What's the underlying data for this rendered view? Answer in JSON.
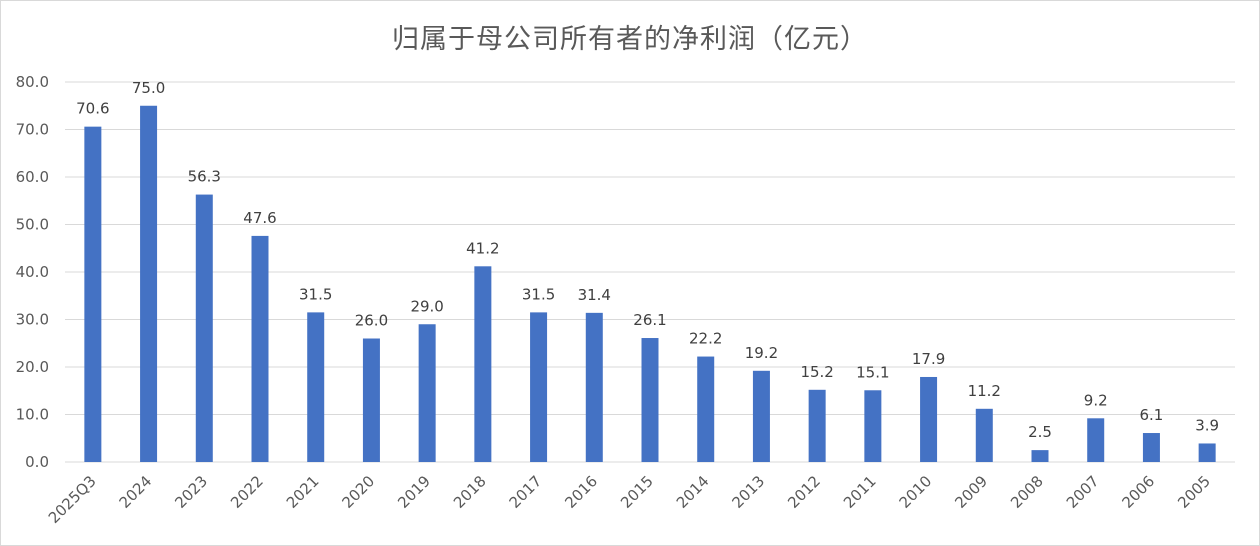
{
  "chart_data": {
    "type": "bar",
    "title": "归属于母公司所有者的净利润（亿元）",
    "categories": [
      "2025Q3",
      "2024",
      "2023",
      "2022",
      "2021",
      "2020",
      "2019",
      "2018",
      "2017",
      "2016",
      "2015",
      "2014",
      "2013",
      "2012",
      "2011",
      "2010",
      "2009",
      "2008",
      "2007",
      "2006",
      "2005"
    ],
    "values": [
      70.6,
      75.0,
      56.3,
      47.6,
      31.5,
      26.0,
      29.0,
      41.2,
      31.5,
      31.4,
      26.1,
      22.2,
      19.2,
      15.2,
      15.1,
      17.9,
      11.2,
      2.5,
      9.2,
      6.1,
      3.9
    ],
    "value_labels": [
      "70.6",
      "75.0",
      "56.3",
      "47.6",
      "31.5",
      "26.0",
      "29.0",
      "41.2",
      "31.5",
      "31.4",
      "26.1",
      "22.2",
      "19.2",
      "15.2",
      "15.1",
      "17.9",
      "11.2",
      "2.5",
      "9.2",
      "6.1",
      "3.9"
    ],
    "ylim": [
      0,
      80
    ],
    "yticks": [
      "0.0",
      "10.0",
      "20.0",
      "30.0",
      "40.0",
      "50.0",
      "60.0",
      "70.0",
      "80.0"
    ],
    "xlabel": "",
    "ylabel": "",
    "grid": true,
    "legend": "none",
    "bar_color": "#4472c4",
    "grid_color": "#d9d9d9"
  }
}
